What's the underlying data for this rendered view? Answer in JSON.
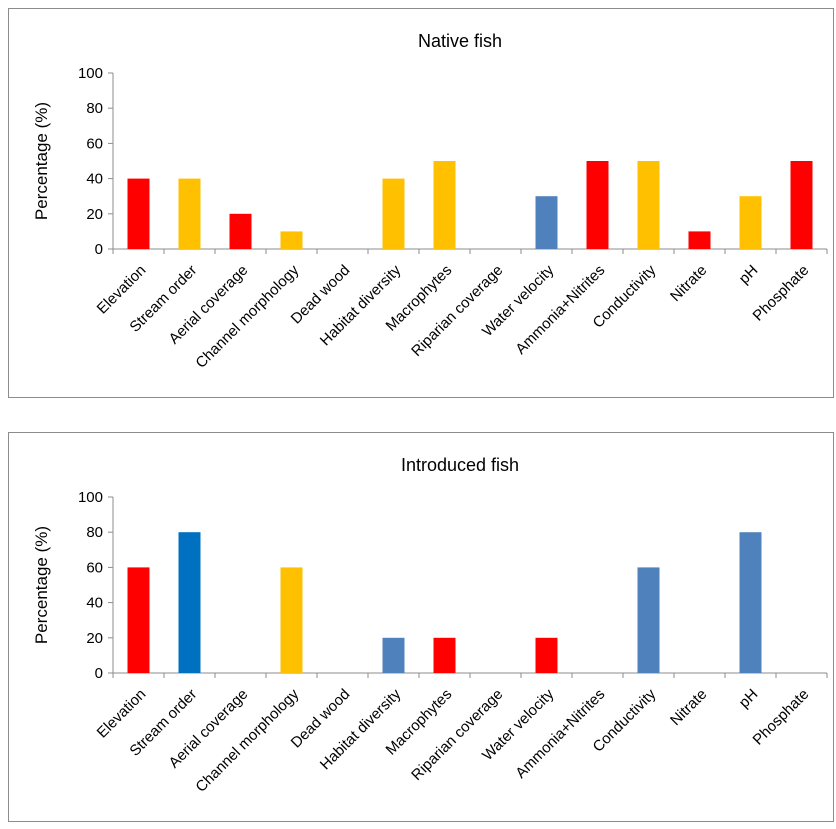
{
  "chart_data": [
    {
      "type": "bar",
      "title": "Native fish",
      "xlabel": "",
      "ylabel": "Percentage (%)",
      "ylim": [
        0,
        100
      ],
      "yticks": [
        0,
        20,
        40,
        60,
        80,
        100
      ],
      "grid": false,
      "categories": [
        "Elevation",
        "Stream order",
        "Aerial coverage",
        "Channel morphology",
        "Dead wood",
        "Habitat diversity",
        "Macrophytes",
        "Riparian coverage",
        "Water velocity",
        "Ammonia+Nitrites",
        "Conductivity",
        "Nitrate",
        "pH",
        "Phosphate"
      ],
      "values": [
        40,
        40,
        20,
        10,
        0,
        40,
        50,
        0,
        30,
        50,
        50,
        10,
        30,
        50
      ],
      "colors": [
        "#ff0000",
        "#ffc000",
        "#ff0000",
        "#ffc000",
        "#ffc000",
        "#ffc000",
        "#ffc000",
        "#ffc000",
        "#4f81bd",
        "#ff0000",
        "#ffc000",
        "#ff0000",
        "#ffc000",
        "#ff0000"
      ]
    },
    {
      "type": "bar",
      "title": "Introduced fish",
      "xlabel": "",
      "ylabel": "Percentage (%)",
      "ylim": [
        0,
        100
      ],
      "yticks": [
        0,
        20,
        40,
        60,
        80,
        100
      ],
      "grid": false,
      "categories": [
        "Elevation",
        "Stream order",
        "Aerial coverage",
        "Channel morphology",
        "Dead wood",
        "Habitat diversity",
        "Macrophytes",
        "Riparian coverage",
        "Water velocity",
        "Ammonia+Nitrites",
        "Conductivity",
        "Nitrate",
        "pH",
        "Phosphate"
      ],
      "values": [
        60,
        80,
        0,
        60,
        0,
        20,
        20,
        0,
        20,
        0,
        60,
        0,
        80,
        0
      ],
      "colors": [
        "#ff0000",
        "#0070c0",
        "#4f81bd",
        "#ffc000",
        "#4f81bd",
        "#4f81bd",
        "#ff0000",
        "#4f81bd",
        "#ff0000",
        "#4f81bd",
        "#4f81bd",
        "#4f81bd",
        "#4f81bd",
        "#4f81bd"
      ]
    }
  ]
}
